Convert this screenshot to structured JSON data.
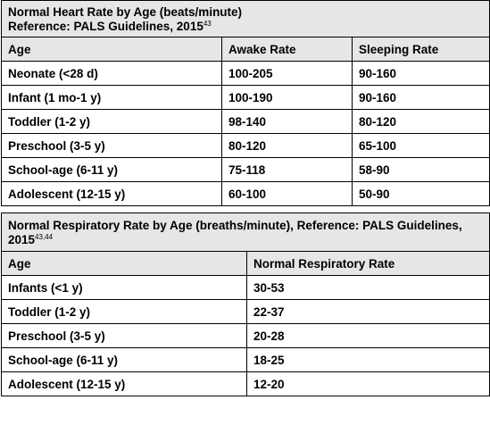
{
  "heart": {
    "title": "Normal Heart Rate by Age (beats/minute)",
    "reference": "Reference: PALS Guidelines, 2015",
    "reference_sup": "43",
    "headers": [
      "Age",
      "Awake Rate",
      "Sleeping Rate"
    ],
    "rows": [
      [
        "Neonate (<28 d)",
        "100-205",
        "90-160"
      ],
      [
        "Infant (1 mo-1 y)",
        "100-190",
        "90-160"
      ],
      [
        "Toddler (1-2 y)",
        "98-140",
        "80-120"
      ],
      [
        "Preschool (3-5 y)",
        "80-120",
        "65-100"
      ],
      [
        "School-age (6-11 y)",
        "75-118",
        "58-90"
      ],
      [
        "Adolescent (12-15 y)",
        "60-100",
        "50-90"
      ]
    ]
  },
  "resp": {
    "title": "Normal Respiratory Rate by Age (breaths/minute), Reference: PALS Guidelines, 2015",
    "title_sup": "43,44",
    "headers": [
      "Age",
      "Normal Respiratory Rate"
    ],
    "rows": [
      [
        "Infants (<1 y)",
        "30-53"
      ],
      [
        "Toddler (1-2 y)",
        "22-37"
      ],
      [
        "Preschool (3-5 y)",
        "20-28"
      ],
      [
        "School-age (6-11 y)",
        "18-25"
      ],
      [
        "Adolescent (12-15 y)",
        "12-20"
      ]
    ]
  }
}
